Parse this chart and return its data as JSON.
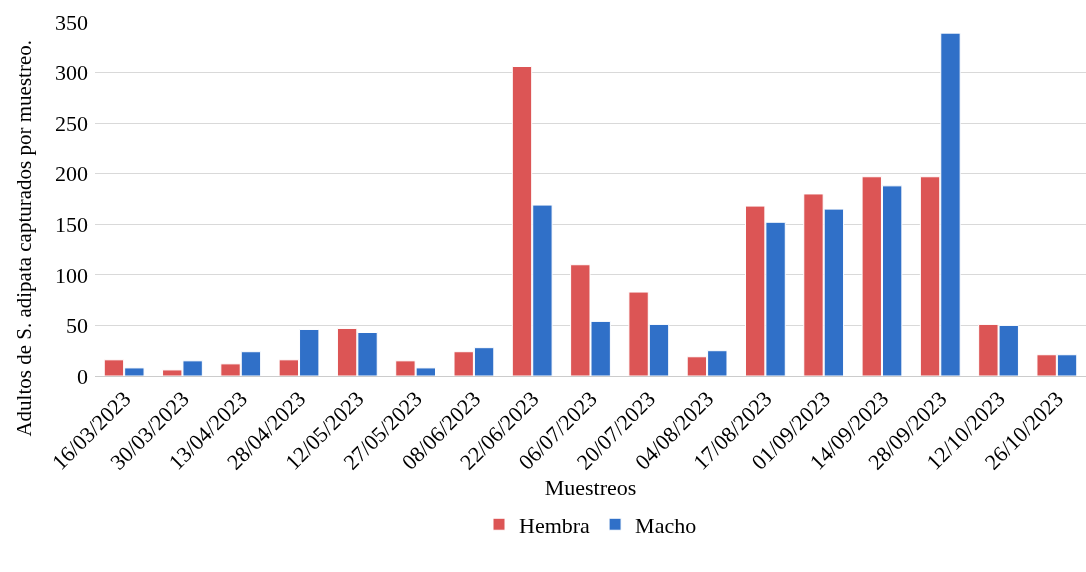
{
  "chart_data": {
    "type": "bar",
    "xlabel": "Muestreos",
    "ylabel": "Adultos de S. adipata capturados por muestreo.",
    "categories": [
      "16/03/2023",
      "30/03/2023",
      "13/04/2023",
      "28/04/2023",
      "12/05/2023",
      "27/05/2023",
      "08/06/2023",
      "22/06/2023",
      "06/07/2023",
      "20/07/2023",
      "04/08/2023",
      "17/08/2023",
      "01/09/2023",
      "14/09/2023",
      "28/09/2023",
      "12/10/2023",
      "26/10/2023"
    ],
    "series": [
      {
        "name": "Hembra",
        "color": "#dc5555",
        "values": [
          16,
          6,
          12,
          16,
          47,
          15,
          24,
          306,
          110,
          83,
          19,
          168,
          180,
          197,
          197,
          51,
          21
        ]
      },
      {
        "name": "Macho",
        "color": "#3070c8",
        "values": [
          8,
          15,
          24,
          46,
          43,
          8,
          28,
          169,
          54,
          51,
          25,
          152,
          165,
          188,
          339,
          50,
          21
        ]
      }
    ],
    "ylim": [
      0,
      350
    ],
    "yticks": [
      0,
      50,
      100,
      150,
      200,
      250,
      300,
      350
    ],
    "grid": "y",
    "legend": "bottom"
  }
}
